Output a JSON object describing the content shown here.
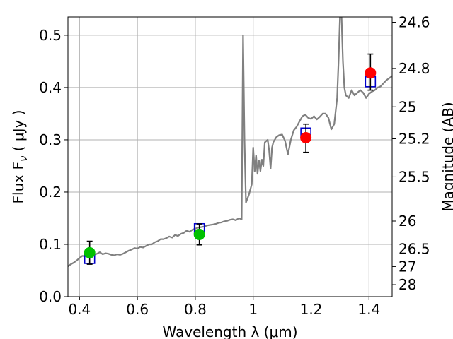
{
  "chart_data": {
    "type": "line",
    "xlabel": "Wavelength  λ (μm)",
    "ylabel": "Flux  F",
    "ylabel_sub": "ν",
    "ylabel_unit": "  ( μJy )",
    "y2label": "Magnitude (AB)",
    "xlim": [
      0.36,
      1.48
    ],
    "ylim": [
      0.0,
      0.535
    ],
    "grid": true,
    "x_ticks": [
      0.4,
      0.6,
      0.8,
      1.0,
      1.2,
      1.4
    ],
    "x_tick_labels": [
      "0.4",
      "0.6",
      "0.8",
      "1",
      "1.2",
      "1.4"
    ],
    "y_ticks": [
      0.0,
      0.1,
      0.2,
      0.3,
      0.4,
      0.5
    ],
    "y_tick_labels": [
      "0.0",
      "0.1",
      "0.2",
      "0.3",
      "0.4",
      "0.5"
    ],
    "y2_ticks": [
      {
        "label": "24.6",
        "mag": 24.6
      },
      {
        "label": "24.8",
        "mag": 24.8
      },
      {
        "label": "25",
        "mag": 25.0
      },
      {
        "label": "25.2",
        "mag": 25.2
      },
      {
        "label": "25.5",
        "mag": 25.5
      },
      {
        "label": "26",
        "mag": 26.0
      },
      {
        "label": "26.5",
        "mag": 26.5
      },
      {
        "label": "27",
        "mag": 27.0
      },
      {
        "label": "28",
        "mag": 28.0
      }
    ],
    "colors": {
      "spectrum": "#808080",
      "green_points": "#00c000",
      "red_points": "#ff0000",
      "model_boxes": "#0000cc",
      "errorbars": "#000000",
      "grid": "#b0b0b0"
    },
    "spectrum": [
      [
        0.36,
        0.058
      ],
      [
        0.37,
        0.062
      ],
      [
        0.38,
        0.065
      ],
      [
        0.39,
        0.069
      ],
      [
        0.4,
        0.074
      ],
      [
        0.41,
        0.078
      ],
      [
        0.42,
        0.077
      ],
      [
        0.43,
        0.08
      ],
      [
        0.44,
        0.083
      ],
      [
        0.45,
        0.08
      ],
      [
        0.46,
        0.082
      ],
      [
        0.47,
        0.085
      ],
      [
        0.48,
        0.081
      ],
      [
        0.49,
        0.083
      ],
      [
        0.5,
        0.082
      ],
      [
        0.51,
        0.08
      ],
      [
        0.52,
        0.079
      ],
      [
        0.53,
        0.081
      ],
      [
        0.54,
        0.08
      ],
      [
        0.55,
        0.082
      ],
      [
        0.56,
        0.085
      ],
      [
        0.57,
        0.088
      ],
      [
        0.58,
        0.09
      ],
      [
        0.59,
        0.093
      ],
      [
        0.6,
        0.092
      ],
      [
        0.61,
        0.095
      ],
      [
        0.62,
        0.094
      ],
      [
        0.63,
        0.097
      ],
      [
        0.64,
        0.1
      ],
      [
        0.65,
        0.1
      ],
      [
        0.66,
        0.104
      ],
      [
        0.67,
        0.106
      ],
      [
        0.68,
        0.11
      ],
      [
        0.69,
        0.11
      ],
      [
        0.7,
        0.112
      ],
      [
        0.71,
        0.115
      ],
      [
        0.72,
        0.113
      ],
      [
        0.73,
        0.118
      ],
      [
        0.74,
        0.116
      ],
      [
        0.75,
        0.12
      ],
      [
        0.76,
        0.122
      ],
      [
        0.77,
        0.126
      ],
      [
        0.78,
        0.124
      ],
      [
        0.79,
        0.128
      ],
      [
        0.8,
        0.13
      ],
      [
        0.81,
        0.132
      ],
      [
        0.82,
        0.133
      ],
      [
        0.83,
        0.134
      ],
      [
        0.84,
        0.136
      ],
      [
        0.85,
        0.137
      ],
      [
        0.86,
        0.138
      ],
      [
        0.87,
        0.139
      ],
      [
        0.88,
        0.141
      ],
      [
        0.89,
        0.142
      ],
      [
        0.9,
        0.144
      ],
      [
        0.91,
        0.145
      ],
      [
        0.92,
        0.147
      ],
      [
        0.93,
        0.148
      ],
      [
        0.94,
        0.146
      ],
      [
        0.95,
        0.15
      ],
      [
        0.96,
        0.148
      ],
      [
        0.965,
        0.5
      ],
      [
        0.97,
        0.3
      ],
      [
        0.975,
        0.18
      ],
      [
        0.985,
        0.195
      ],
      [
        0.995,
        0.215
      ],
      [
        1.0,
        0.285
      ],
      [
        1.005,
        0.24
      ],
      [
        1.01,
        0.27
      ],
      [
        1.015,
        0.235
      ],
      [
        1.02,
        0.26
      ],
      [
        1.025,
        0.24
      ],
      [
        1.03,
        0.262
      ],
      [
        1.035,
        0.25
      ],
      [
        1.04,
        0.295
      ],
      [
        1.05,
        0.3
      ],
      [
        1.055,
        0.28
      ],
      [
        1.06,
        0.245
      ],
      [
        1.065,
        0.285
      ],
      [
        1.07,
        0.296
      ],
      [
        1.08,
        0.305
      ],
      [
        1.09,
        0.309
      ],
      [
        1.1,
        0.31
      ],
      [
        1.11,
        0.298
      ],
      [
        1.12,
        0.272
      ],
      [
        1.13,
        0.3
      ],
      [
        1.14,
        0.318
      ],
      [
        1.15,
        0.325
      ],
      [
        1.16,
        0.335
      ],
      [
        1.17,
        0.345
      ],
      [
        1.18,
        0.348
      ],
      [
        1.19,
        0.342
      ],
      [
        1.2,
        0.34
      ],
      [
        1.21,
        0.345
      ],
      [
        1.22,
        0.339
      ],
      [
        1.23,
        0.344
      ],
      [
        1.24,
        0.35
      ],
      [
        1.25,
        0.35
      ],
      [
        1.26,
        0.342
      ],
      [
        1.27,
        0.32
      ],
      [
        1.28,
        0.33
      ],
      [
        1.29,
        0.38
      ],
      [
        1.295,
        0.45
      ],
      [
        1.3,
        0.54
      ],
      [
        1.305,
        0.54
      ],
      [
        1.31,
        0.45
      ],
      [
        1.315,
        0.4
      ],
      [
        1.32,
        0.385
      ],
      [
        1.33,
        0.38
      ],
      [
        1.34,
        0.395
      ],
      [
        1.35,
        0.385
      ],
      [
        1.36,
        0.39
      ],
      [
        1.37,
        0.395
      ],
      [
        1.38,
        0.39
      ],
      [
        1.39,
        0.38
      ],
      [
        1.4,
        0.388
      ],
      [
        1.41,
        0.392
      ],
      [
        1.42,
        0.395
      ],
      [
        1.43,
        0.4
      ],
      [
        1.44,
        0.402
      ],
      [
        1.45,
        0.408
      ],
      [
        1.46,
        0.414
      ],
      [
        1.47,
        0.418
      ],
      [
        1.48,
        0.422
      ]
    ],
    "photometry": [
      {
        "x": 0.435,
        "y": 0.084,
        "err_lo": 0.022,
        "err_hi": 0.022,
        "color": "green",
        "model": 0.073
      },
      {
        "x": 0.814,
        "y": 0.119,
        "err_lo": 0.02,
        "err_hi": 0.02,
        "color": "green",
        "model": 0.13
      },
      {
        "x": 1.182,
        "y": 0.304,
        "err_lo": 0.028,
        "err_hi": 0.026,
        "color": "red",
        "model": 0.313
      },
      {
        "x": 1.405,
        "y": 0.428,
        "err_lo": 0.033,
        "err_hi": 0.036,
        "color": "red",
        "model": 0.411
      }
    ]
  }
}
